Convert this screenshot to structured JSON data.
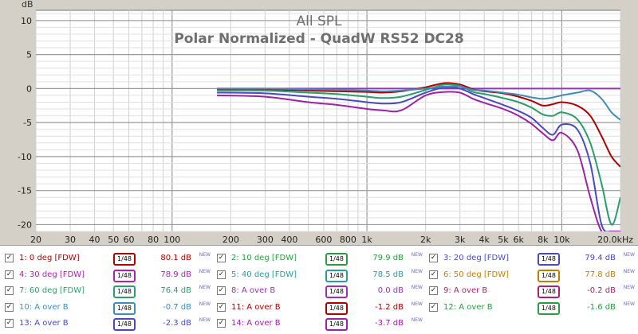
{
  "chart_data": {
    "type": "line",
    "title": "All SPL",
    "subtitle": "Polar Normalized - QuadW RS52 DC28",
    "ylabel": "dB",
    "xunit": "Hz",
    "xscale": "log",
    "xlim": [
      20,
      20000
    ],
    "ylim": [
      -21,
      11.5
    ],
    "grid": true,
    "yticks": [
      10,
      5,
      0,
      -5,
      -10,
      -15,
      -20
    ],
    "xtick_labels": [
      {
        "f": 20,
        "label": "20"
      },
      {
        "f": 30,
        "label": "30"
      },
      {
        "f": 40,
        "label": "40"
      },
      {
        "f": 50,
        "label": "50"
      },
      {
        "f": 60,
        "label": "60"
      },
      {
        "f": 80,
        "label": "80"
      },
      {
        "f": 100,
        "label": "100"
      },
      {
        "f": 200,
        "label": "200"
      },
      {
        "f": 300,
        "label": "300"
      },
      {
        "f": 400,
        "label": "400"
      },
      {
        "f": 600,
        "label": "600"
      },
      {
        "f": 800,
        "label": "800"
      },
      {
        "f": 1000,
        "label": "1k"
      },
      {
        "f": 2000,
        "label": "2k"
      },
      {
        "f": 3000,
        "label": "3k"
      },
      {
        "f": 4000,
        "label": "4k"
      },
      {
        "f": 5000,
        "label": "5k"
      },
      {
        "f": 6000,
        "label": "6k"
      },
      {
        "f": 8000,
        "label": "8k"
      },
      {
        "f": 10000,
        "label": "10k"
      },
      {
        "f": 20000,
        "label": "20.0kHz"
      }
    ],
    "x": [
      170,
      300,
      500,
      700,
      1000,
      1200,
      1500,
      2000,
      2500,
      3000,
      3500,
      4000,
      5000,
      6000,
      7000,
      8000,
      9000,
      10000,
      12000,
      14000,
      16000,
      18000,
      20000
    ],
    "series": [
      {
        "color": "#9b30b8",
        "values": [
          0,
          0,
          0,
          0,
          0,
          0,
          0,
          0,
          0,
          0,
          0,
          0,
          0,
          0,
          0,
          0,
          0,
          0,
          0,
          0,
          0,
          0,
          0
        ]
      },
      {
        "color": "#b00000",
        "values": [
          -0.1,
          -0.1,
          -0.3,
          -0.4,
          -0.5,
          -0.6,
          -0.4,
          0.2,
          0.8,
          0.6,
          -0.1,
          -0.4,
          -0.7,
          -1.2,
          -1.8,
          -2.5,
          -2.3,
          -2.0,
          -2.5,
          -4.0,
          -7.0,
          -10.0,
          -11.5
        ]
      },
      {
        "color": "#2a9d6b",
        "values": [
          -0.3,
          -0.3,
          -0.6,
          -0.8,
          -1.2,
          -1.4,
          -1.2,
          -0.2,
          0.6,
          0.4,
          -0.5,
          -0.8,
          -1.4,
          -2.0,
          -2.8,
          -3.8,
          -4.0,
          -3.5,
          -4.5,
          -8.0,
          -14.0,
          -20.0,
          -16.0
        ]
      },
      {
        "color": "#4a4ac0",
        "values": [
          -0.6,
          -0.7,
          -1.2,
          -1.5,
          -2.0,
          -2.2,
          -2.0,
          -0.6,
          0.2,
          0.0,
          -0.8,
          -1.4,
          -2.4,
          -3.3,
          -4.3,
          -5.8,
          -6.8,
          -5.3,
          -6.0,
          -11.0,
          -20.0,
          -21.0,
          -21.0
        ]
      },
      {
        "color": "#a020a8",
        "values": [
          -1.0,
          -1.2,
          -2.0,
          -2.4,
          -3.0,
          -3.2,
          -3.2,
          -1.0,
          -0.5,
          -0.6,
          -1.5,
          -2.1,
          -3.0,
          -4.0,
          -5.2,
          -6.6,
          -7.6,
          -6.5,
          -9.0,
          -16.0,
          -21.0,
          -21.0,
          -21.0
        ]
      },
      {
        "color": "#3d8fb8",
        "values": [
          0,
          0,
          -0.1,
          -0.2,
          -0.3,
          -0.4,
          -0.3,
          0,
          0.3,
          0.3,
          -0.2,
          -0.3,
          -0.6,
          -0.9,
          -1.3,
          -1.5,
          -1.3,
          -1.0,
          -0.6,
          -0.3,
          -1.5,
          -3.5,
          -4.6
        ]
      }
    ]
  },
  "legend": [
    {
      "name": "1: 0 deg [FDW]",
      "color": "#b00000",
      "smoothing": "1/48",
      "value": "80.1 dB",
      "tag": "NEW"
    },
    {
      "name": "2: 10 deg [FDW]",
      "color": "#2a9d40",
      "smoothing": "1/48",
      "value": "79.9 dB",
      "tag": "NEW"
    },
    {
      "name": "3: 20 deg [FDW]",
      "color": "#4a4ac0",
      "smoothing": "1/48",
      "value": "79.4 dB",
      "tag": "NEW"
    },
    {
      "name": "4: 30 deg [FDW]",
      "color": "#b020b0",
      "smoothing": "1/48",
      "value": "78.9 dB",
      "tag": "NEW"
    },
    {
      "name": "5: 40 deg [FDW]",
      "color": "#2a9d9d",
      "smoothing": "1/48",
      "value": "78.5 dB",
      "tag": "NEW"
    },
    {
      "name": "6: 50 deg [FDW]",
      "color": "#c08000",
      "smoothing": "1/48",
      "value": "77.8 dB",
      "tag": "NEW"
    },
    {
      "name": "7: 60 deg [FDW]",
      "color": "#2aa070",
      "smoothing": "1/48",
      "value": "76.4 dB",
      "tag": "NEW"
    },
    {
      "name": "8: A over B",
      "color": "#9b30b8",
      "smoothing": "1/48",
      "value": "0.0 dB",
      "tag": "NEW"
    },
    {
      "name": "9: A over B",
      "color": "#b02070",
      "smoothing": "1/48",
      "value": "-0.2 dB",
      "tag": "NEW"
    },
    {
      "name": "10: A over B",
      "color": "#3d8fb8",
      "smoothing": "1/48",
      "value": "-0.7 dB",
      "tag": "NEW"
    },
    {
      "name": "11: A over B",
      "color": "#b00000",
      "smoothing": "1/48",
      "value": "-1.2 dB",
      "tag": "NEW"
    },
    {
      "name": "12: A over B",
      "color": "#2a9d40",
      "smoothing": "1/48",
      "value": "-1.6 dB",
      "tag": "NEW"
    },
    {
      "name": "13: A over B",
      "color": "#4a4ac0",
      "smoothing": "1/48",
      "value": "-2.3 dB",
      "tag": "NEW"
    },
    {
      "name": "14: A over B",
      "color": "#a020a8",
      "smoothing": "1/48",
      "value": "-3.7 dB",
      "tag": "NEW"
    }
  ]
}
